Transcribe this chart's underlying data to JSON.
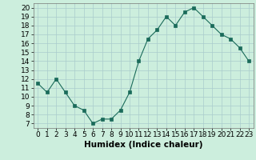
{
  "x": [
    0,
    1,
    2,
    3,
    4,
    5,
    6,
    7,
    8,
    9,
    10,
    11,
    12,
    13,
    14,
    15,
    16,
    17,
    18,
    19,
    20,
    21,
    22,
    23
  ],
  "y": [
    11.5,
    10.5,
    12,
    10.5,
    9,
    8.5,
    7,
    7.5,
    7.5,
    8.5,
    10.5,
    14,
    16.5,
    17.5,
    19,
    18,
    19.5,
    20,
    19,
    18,
    17,
    16.5,
    15.5,
    14
  ],
  "line_color": "#1a6b5a",
  "marker_color": "#1a6b5a",
  "bg_color": "#cceedd",
  "grid_color": "#aacccc",
  "xlabel": "Humidex (Indice chaleur)",
  "xlim": [
    -0.5,
    23.5
  ],
  "ylim": [
    6.5,
    20.5
  ],
  "yticks": [
    7,
    8,
    9,
    10,
    11,
    12,
    13,
    14,
    15,
    16,
    17,
    18,
    19,
    20
  ],
  "xticks": [
    0,
    1,
    2,
    3,
    4,
    5,
    6,
    7,
    8,
    9,
    10,
    11,
    12,
    13,
    14,
    15,
    16,
    17,
    18,
    19,
    20,
    21,
    22,
    23
  ],
  "font_size": 6.5,
  "label_font_size": 7.5
}
